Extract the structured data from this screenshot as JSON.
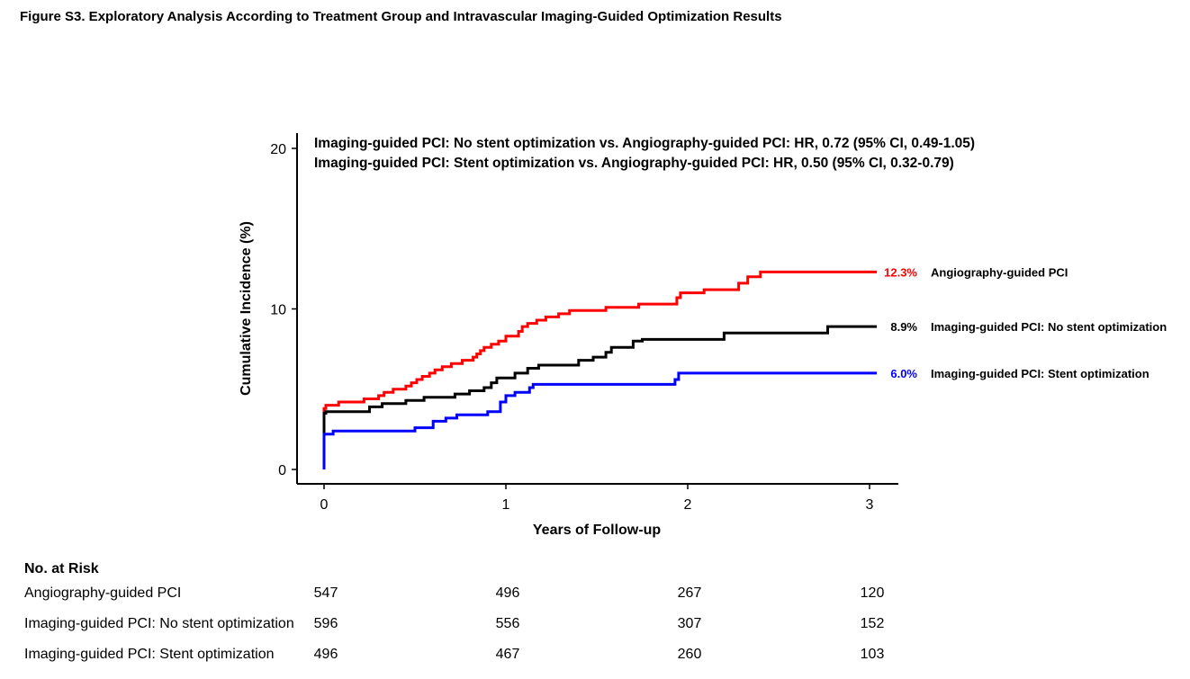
{
  "figure": {
    "title": "Figure S3. Exploratory Analysis According to Treatment Group and Intravascular Imaging-Guided Optimization Results"
  },
  "chart_data": {
    "type": "line",
    "subtype": "kaplan-meier cumulative incidence (step)",
    "title": "",
    "xlabel": "Years of Follow-up",
    "ylabel": "Cumulative Incidence (%)",
    "xlim": [
      0,
      3
    ],
    "ylim": [
      0,
      20
    ],
    "xticks": [
      0,
      1,
      2,
      3
    ],
    "yticks": [
      0,
      10,
      20
    ],
    "grid": false,
    "annotations": [
      "Imaging-guided PCI: No stent optimization vs. Angiography-guided PCI: HR, 0.72 (95% CI, 0.49-1.05)",
      "Imaging-guided PCI: Stent optimization vs. Angiography-guided PCI: HR, 0.50 (95% CI, 0.32-0.79)"
    ],
    "series": [
      {
        "name": "Angiography-guided PCI",
        "end_label": "12.3%",
        "color": "#ff0000",
        "points": [
          [
            0,
            0
          ],
          [
            0,
            3.8
          ],
          [
            0.01,
            3.8
          ],
          [
            0.01,
            4.0
          ],
          [
            0.08,
            4.0
          ],
          [
            0.08,
            4.2
          ],
          [
            0.22,
            4.2
          ],
          [
            0.22,
            4.4
          ],
          [
            0.3,
            4.4
          ],
          [
            0.3,
            4.6
          ],
          [
            0.33,
            4.6
          ],
          [
            0.33,
            4.8
          ],
          [
            0.38,
            4.8
          ],
          [
            0.38,
            5.0
          ],
          [
            0.45,
            5.0
          ],
          [
            0.45,
            5.2
          ],
          [
            0.48,
            5.2
          ],
          [
            0.48,
            5.4
          ],
          [
            0.51,
            5.4
          ],
          [
            0.51,
            5.6
          ],
          [
            0.54,
            5.6
          ],
          [
            0.54,
            5.8
          ],
          [
            0.58,
            5.8
          ],
          [
            0.58,
            6.0
          ],
          [
            0.61,
            6.0
          ],
          [
            0.61,
            6.2
          ],
          [
            0.65,
            6.2
          ],
          [
            0.65,
            6.4
          ],
          [
            0.7,
            6.4
          ],
          [
            0.7,
            6.6
          ],
          [
            0.76,
            6.6
          ],
          [
            0.76,
            6.8
          ],
          [
            0.82,
            6.8
          ],
          [
            0.82,
            7.0
          ],
          [
            0.84,
            7.0
          ],
          [
            0.84,
            7.2
          ],
          [
            0.86,
            7.2
          ],
          [
            0.86,
            7.4
          ],
          [
            0.88,
            7.4
          ],
          [
            0.88,
            7.6
          ],
          [
            0.92,
            7.6
          ],
          [
            0.92,
            7.8
          ],
          [
            0.96,
            7.8
          ],
          [
            0.96,
            8.0
          ],
          [
            1.0,
            8.0
          ],
          [
            1.0,
            8.3
          ],
          [
            1.07,
            8.3
          ],
          [
            1.07,
            8.6
          ],
          [
            1.09,
            8.6
          ],
          [
            1.09,
            8.9
          ],
          [
            1.12,
            8.9
          ],
          [
            1.12,
            9.1
          ],
          [
            1.17,
            9.1
          ],
          [
            1.17,
            9.3
          ],
          [
            1.22,
            9.3
          ],
          [
            1.22,
            9.5
          ],
          [
            1.29,
            9.5
          ],
          [
            1.29,
            9.7
          ],
          [
            1.35,
            9.7
          ],
          [
            1.35,
            9.9
          ],
          [
            1.55,
            9.9
          ],
          [
            1.55,
            10.1
          ],
          [
            1.73,
            10.1
          ],
          [
            1.73,
            10.3
          ],
          [
            1.94,
            10.3
          ],
          [
            1.94,
            10.7
          ],
          [
            1.96,
            10.7
          ],
          [
            1.96,
            11.0
          ],
          [
            2.09,
            11.0
          ],
          [
            2.09,
            11.2
          ],
          [
            2.28,
            11.2
          ],
          [
            2.28,
            11.6
          ],
          [
            2.33,
            11.6
          ],
          [
            2.33,
            12.0
          ],
          [
            2.4,
            12.0
          ],
          [
            2.4,
            12.3
          ],
          [
            3.04,
            12.3
          ]
        ]
      },
      {
        "name": "Imaging-guided PCI: No stent optimization",
        "end_label": "8.9%",
        "color": "#000000",
        "points": [
          [
            0,
            0
          ],
          [
            0,
            3.5
          ],
          [
            0.01,
            3.5
          ],
          [
            0.01,
            3.6
          ],
          [
            0.25,
            3.6
          ],
          [
            0.25,
            3.9
          ],
          [
            0.32,
            3.9
          ],
          [
            0.32,
            4.1
          ],
          [
            0.45,
            4.1
          ],
          [
            0.45,
            4.3
          ],
          [
            0.55,
            4.3
          ],
          [
            0.55,
            4.5
          ],
          [
            0.72,
            4.5
          ],
          [
            0.72,
            4.7
          ],
          [
            0.8,
            4.7
          ],
          [
            0.8,
            4.9
          ],
          [
            0.88,
            4.9
          ],
          [
            0.88,
            5.1
          ],
          [
            0.92,
            5.1
          ],
          [
            0.92,
            5.4
          ],
          [
            0.95,
            5.4
          ],
          [
            0.95,
            5.7
          ],
          [
            1.05,
            5.7
          ],
          [
            1.05,
            6.0
          ],
          [
            1.12,
            6.0
          ],
          [
            1.12,
            6.3
          ],
          [
            1.18,
            6.3
          ],
          [
            1.18,
            6.5
          ],
          [
            1.4,
            6.5
          ],
          [
            1.4,
            6.8
          ],
          [
            1.48,
            6.8
          ],
          [
            1.48,
            7.0
          ],
          [
            1.55,
            7.0
          ],
          [
            1.55,
            7.3
          ],
          [
            1.58,
            7.3
          ],
          [
            1.58,
            7.6
          ],
          [
            1.7,
            7.6
          ],
          [
            1.7,
            8.0
          ],
          [
            1.75,
            8.0
          ],
          [
            1.75,
            8.1
          ],
          [
            2.2,
            8.1
          ],
          [
            2.2,
            8.5
          ],
          [
            2.77,
            8.5
          ],
          [
            2.77,
            8.9
          ],
          [
            3.04,
            8.9
          ]
        ]
      },
      {
        "name": "Imaging-guided PCI: Stent optimization",
        "end_label": "6.0%",
        "color": "#0000ff",
        "points": [
          [
            0,
            0
          ],
          [
            0,
            2.2
          ],
          [
            0.05,
            2.2
          ],
          [
            0.05,
            2.4
          ],
          [
            0.5,
            2.4
          ],
          [
            0.5,
            2.6
          ],
          [
            0.6,
            2.6
          ],
          [
            0.6,
            3.0
          ],
          [
            0.67,
            3.0
          ],
          [
            0.67,
            3.2
          ],
          [
            0.73,
            3.2
          ],
          [
            0.73,
            3.4
          ],
          [
            0.9,
            3.4
          ],
          [
            0.9,
            3.6
          ],
          [
            0.97,
            3.6
          ],
          [
            0.97,
            4.2
          ],
          [
            1.0,
            4.2
          ],
          [
            1.0,
            4.6
          ],
          [
            1.05,
            4.6
          ],
          [
            1.05,
            4.8
          ],
          [
            1.13,
            4.8
          ],
          [
            1.13,
            5.1
          ],
          [
            1.15,
            5.1
          ],
          [
            1.15,
            5.3
          ],
          [
            1.93,
            5.3
          ],
          [
            1.93,
            5.6
          ],
          [
            1.95,
            5.6
          ],
          [
            1.95,
            6.0
          ],
          [
            3.04,
            6.0
          ]
        ]
      }
    ]
  },
  "risk_table": {
    "heading": "No. at Risk",
    "rows": [
      {
        "label": "Angiography-guided PCI",
        "values": [
          "547",
          "496",
          "267",
          "120"
        ]
      },
      {
        "label": "Imaging-guided PCI: No stent optimization",
        "values": [
          "596",
          "556",
          "307",
          "152"
        ]
      },
      {
        "label": "Imaging-guided PCI: Stent optimization",
        "values": [
          "496",
          "467",
          "260",
          "103"
        ]
      }
    ]
  }
}
